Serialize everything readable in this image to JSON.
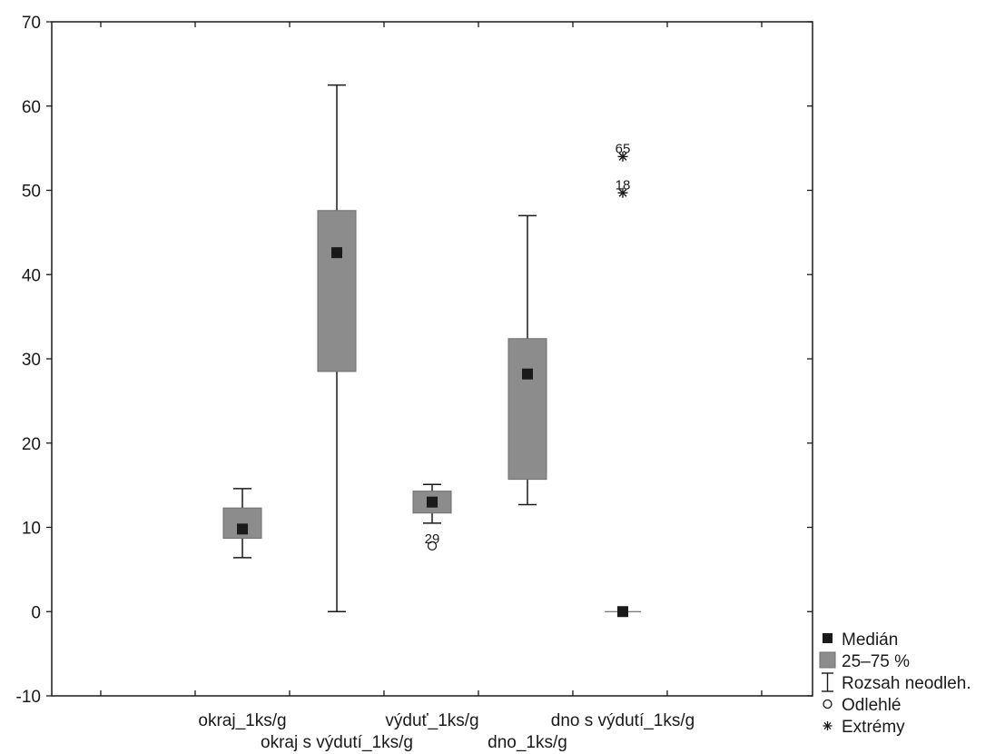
{
  "chart_data": {
    "type": "boxplot",
    "title": "",
    "xlabel": "",
    "ylabel": "",
    "ylim": [
      -10,
      70
    ],
    "yticks": [
      -10,
      0,
      10,
      20,
      30,
      40,
      50,
      60,
      70
    ],
    "grid": false,
    "legend_position": "right-bottom",
    "categories": [
      "okraj_1ks/g",
      "okraj s výdutí_1ks/g",
      "výduť_1ks/g",
      "dno_1ks/g",
      "dno s výdutí_1ks/g"
    ],
    "boxes": [
      {
        "category": "okraj_1ks/g",
        "median": 9.8,
        "q1": 8.7,
        "q3": 12.3,
        "whisker_low": 6.4,
        "whisker_high": 14.6,
        "outliers": [],
        "extremes": []
      },
      {
        "category": "okraj s výdutí_1ks/g",
        "median": 42.6,
        "q1": 28.5,
        "q3": 47.6,
        "whisker_low": 0,
        "whisker_high": 62.5,
        "outliers": [],
        "extremes": []
      },
      {
        "category": "výduť_1ks/g",
        "median": 13.0,
        "q1": 11.7,
        "q3": 14.3,
        "whisker_low": 10.5,
        "whisker_high": 15.1,
        "outliers": [
          {
            "value": 7.8,
            "label": "29"
          }
        ],
        "extremes": []
      },
      {
        "category": "dno_1ks/g",
        "median": 28.2,
        "q1": 15.7,
        "q3": 32.4,
        "whisker_low": 12.7,
        "whisker_high": 47.0,
        "outliers": [],
        "extremes": []
      },
      {
        "category": "dno s výdutí_1ks/g",
        "median": 0,
        "q1": 0,
        "q3": 0,
        "whisker_low": 0,
        "whisker_high": 0,
        "outliers": [],
        "extremes": [
          {
            "value": 54.0,
            "label": "65"
          },
          {
            "value": 49.7,
            "label": "18"
          }
        ]
      }
    ],
    "legend": [
      {
        "key": "median",
        "label": "Medián"
      },
      {
        "key": "box",
        "label": "25–75 %"
      },
      {
        "key": "whisker",
        "label": "Rozsah neodleh."
      },
      {
        "key": "outlier",
        "label": "Odlehlé"
      },
      {
        "key": "extreme",
        "label": "Extrémy"
      }
    ],
    "colors": {
      "box": "#8c8c8c",
      "median": "#1a1a1a",
      "line": "#1a1a1a",
      "background": "#ffffff"
    }
  }
}
